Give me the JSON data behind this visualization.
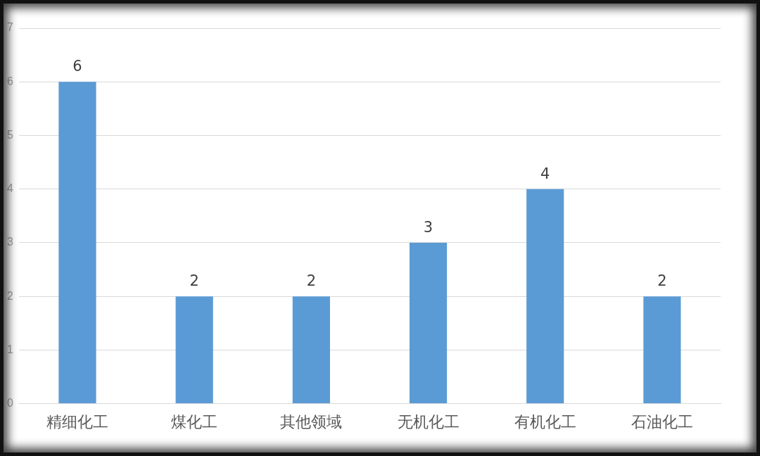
{
  "chart_data": {
    "type": "bar",
    "categories": [
      "精细化工",
      "煤化工",
      "其他领域",
      "无机化工",
      "有机化工",
      "石油化工"
    ],
    "values": [
      6,
      2,
      2,
      3,
      4,
      2
    ],
    "color": "#5b9bd5",
    "ylim": [
      0,
      7
    ],
    "yticks": [
      0,
      1,
      2,
      3,
      4,
      5,
      6,
      7
    ],
    "grid": "y",
    "data_labels": true,
    "legend": false
  }
}
